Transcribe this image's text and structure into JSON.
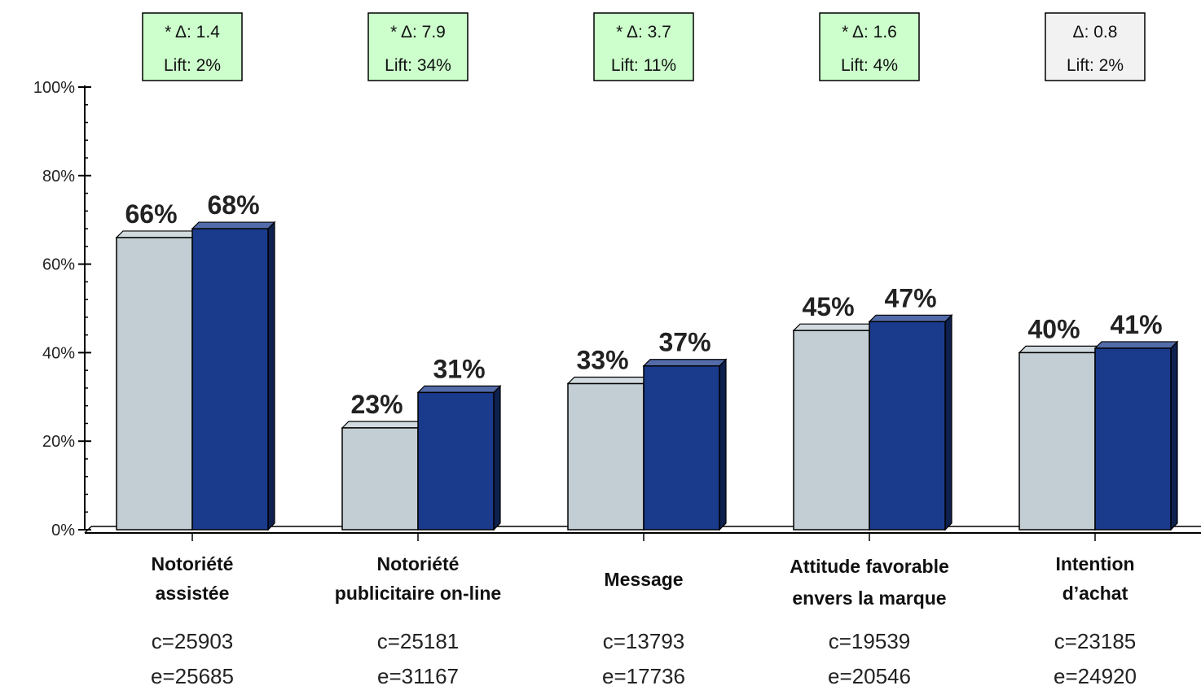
{
  "chart_data": {
    "type": "bar",
    "title": "",
    "xlabel": "",
    "ylabel": "",
    "ylim": [
      0,
      100
    ],
    "y_ticks": [
      "0%",
      "20%",
      "40%",
      "60%",
      "80%",
      "100%"
    ],
    "y_tick_values": [
      0,
      20,
      40,
      60,
      80,
      100
    ],
    "grid": false,
    "legend": "none",
    "categories": [
      {
        "lines": [
          "Notoriété",
          "assistée"
        ]
      },
      {
        "lines": [
          "Notoriété",
          "publicitaire on-line"
        ]
      },
      {
        "lines": [
          "Message"
        ]
      },
      {
        "lines": [
          "Attitude favorable",
          "envers la marque"
        ]
      },
      {
        "lines": [
          "Intention",
          "d’achat"
        ]
      }
    ],
    "series": [
      {
        "color": "#c2ced3",
        "values": [
          66,
          23,
          33,
          45,
          40
        ],
        "labels": [
          "66%",
          "23%",
          "33%",
          "45%",
          "40%"
        ]
      },
      {
        "color": "#1a3a8c",
        "values": [
          68,
          31,
          37,
          47,
          41
        ],
        "labels": [
          "68%",
          "31%",
          "37%",
          "47%",
          "41%"
        ]
      }
    ],
    "sample_sizes": [
      {
        "c": "c=25903",
        "e": "e=25685"
      },
      {
        "c": "c=25181",
        "e": "e=31167"
      },
      {
        "c": "c=13793",
        "e": "e=17736"
      },
      {
        "c": "c=19539",
        "e": "e=20546"
      },
      {
        "c": "c=23185",
        "e": "e=24920"
      }
    ],
    "delta_boxes": [
      {
        "delta": "* Δ: 1.4",
        "lift": "Lift: 2%",
        "significant": true
      },
      {
        "delta": "* Δ: 7.9",
        "lift": "Lift: 34%",
        "significant": true
      },
      {
        "delta": "* Δ: 3.7",
        "lift": "Lift: 11%",
        "significant": true
      },
      {
        "delta": "* Δ: 1.6",
        "lift": "Lift: 4%",
        "significant": true
      },
      {
        "delta": "Δ: 0.8",
        "lift": "Lift: 2%",
        "significant": false
      }
    ],
    "colors": {
      "significant_box": "#ccffcc",
      "neutral_box": "#f2f2f2",
      "axis": "#000000"
    }
  }
}
